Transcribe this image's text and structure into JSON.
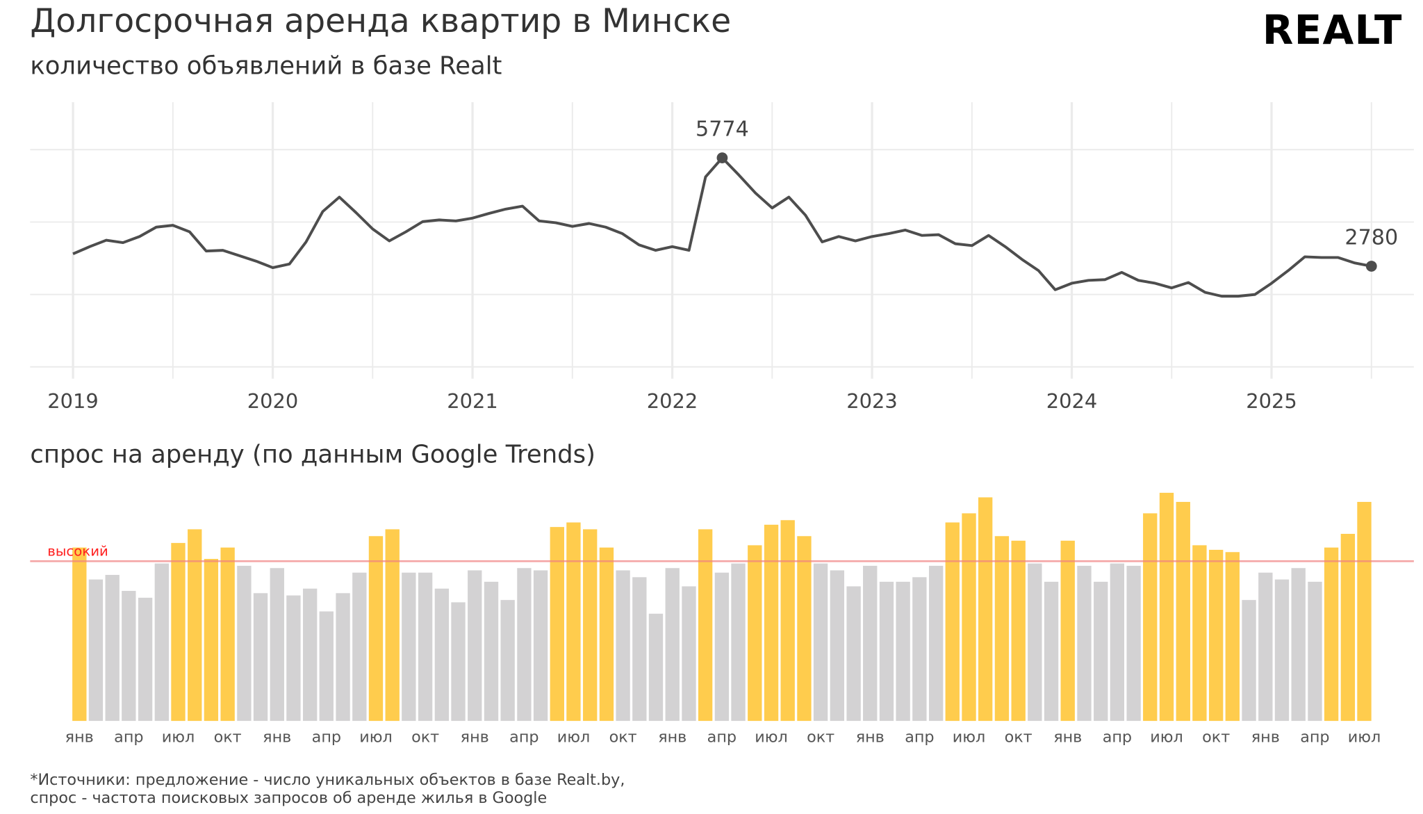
{
  "title": "Долгосрочная аренда квартир в Минске",
  "logo": "REALT",
  "chart_data": [
    {
      "type": "line",
      "subtitle": "количество объявлений в базе Realt",
      "x_start": "2019-01",
      "x_step": "month",
      "x_tick_labels": [
        "2019",
        "2020",
        "2021",
        "2022",
        "2023",
        "2024",
        "2025"
      ],
      "ylim": [
        0,
        6000
      ],
      "y_gridlines": [
        0,
        2000,
        4000,
        6000
      ],
      "grid": true,
      "values": [
        3120,
        3320,
        3500,
        3430,
        3600,
        3860,
        3910,
        3730,
        3200,
        3220,
        3070,
        2920,
        2740,
        2840,
        3450,
        4290,
        4690,
        4260,
        3810,
        3480,
        3730,
        4010,
        4060,
        4030,
        4110,
        4240,
        4360,
        4440,
        4030,
        3980,
        3880,
        3960,
        3860,
        3680,
        3370,
        3220,
        3320,
        3220,
        5250,
        5774,
        5300,
        4800,
        4390,
        4690,
        4190,
        3450,
        3600,
        3480,
        3600,
        3680,
        3780,
        3630,
        3650,
        3400,
        3350,
        3630,
        3320,
        2970,
        2660,
        2130,
        2310,
        2390,
        2410,
        2610,
        2390,
        2310,
        2180,
        2330,
        2060,
        1950,
        1950,
        2000,
        2310,
        2660,
        3040,
        3020,
        3020,
        2870,
        2780
      ],
      "annotations": [
        {
          "date": "2022-04",
          "text": "5774"
        },
        {
          "date": "2025-07",
          "text": "2780"
        }
      ],
      "line_color": "#4d4d4d"
    },
    {
      "type": "bar",
      "subtitle": "спрос на аренду (по данным Google Trends)",
      "x_start": "2019-01",
      "x_step": "month",
      "month_tick_labels": [
        "янв",
        "апр",
        "июл",
        "окт"
      ],
      "ylim": [
        0,
        100
      ],
      "threshold": {
        "value": 70,
        "label": "высокий",
        "color": "#f08080"
      },
      "values": [
        76,
        62,
        64,
        57,
        54,
        69,
        78,
        84,
        71,
        76,
        68,
        56,
        67,
        55,
        58,
        48,
        56,
        65,
        81,
        84,
        65,
        65,
        58,
        52,
        66,
        61,
        53,
        67,
        66,
        85,
        87,
        84,
        76,
        66,
        63,
        47,
        67,
        59,
        84,
        65,
        69,
        77,
        86,
        88,
        81,
        69,
        66,
        59,
        68,
        61,
        61,
        63,
        68,
        87,
        91,
        98,
        81,
        79,
        69,
        61,
        79,
        68,
        61,
        69,
        68,
        91,
        100,
        96,
        77,
        75,
        74,
        53,
        65,
        62,
        67,
        61,
        76,
        82,
        96
      ],
      "colors": {
        "high": "#ffcc4d",
        "normal": "#d3d2d3"
      }
    }
  ],
  "footnote": [
    "*Источники: предложение - число уникальных объектов в базе Realt.by,",
    "спрос - частота поисковых запросов об аренде жилья в Google"
  ]
}
